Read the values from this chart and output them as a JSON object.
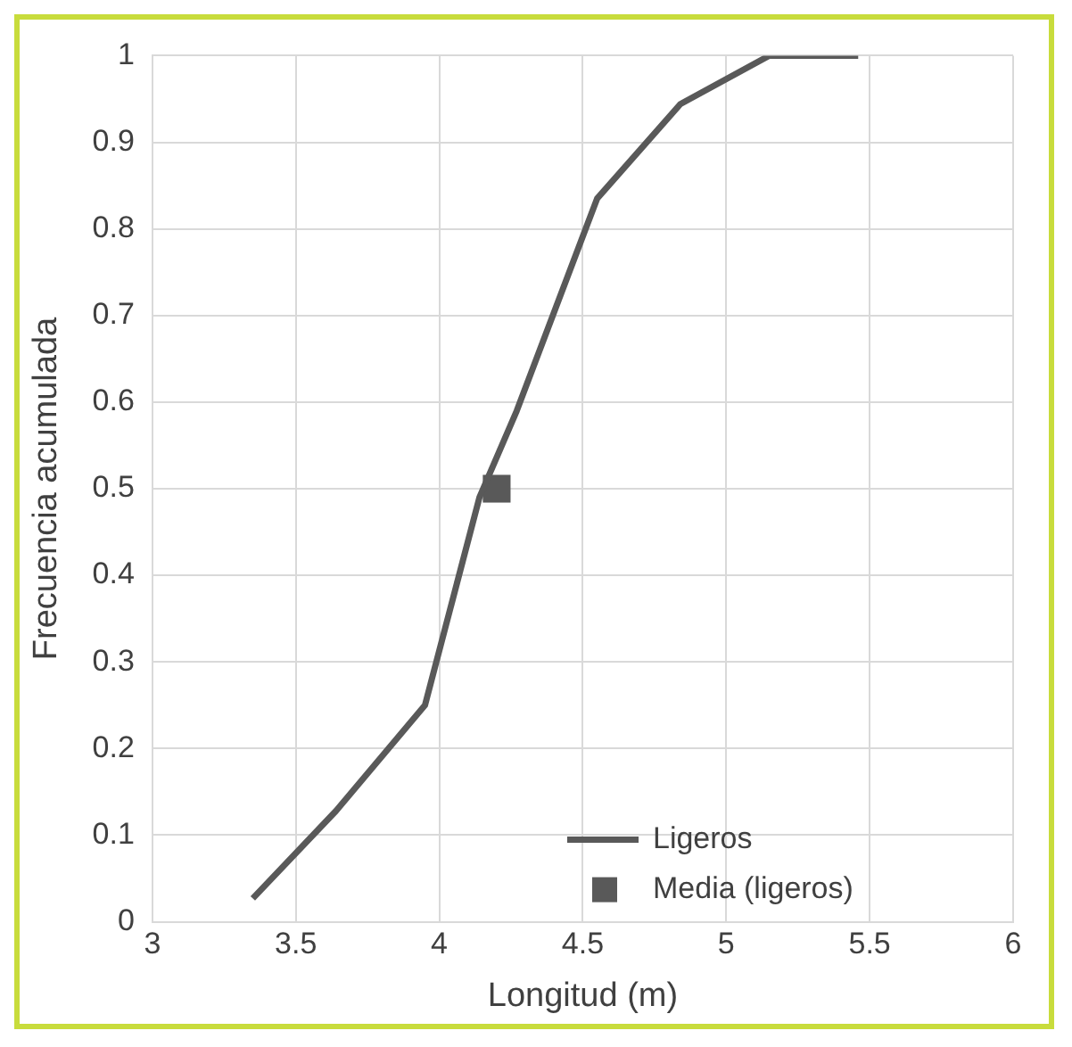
{
  "chart_data": {
    "type": "line",
    "xlabel": "Longitud (m)",
    "ylabel": "Frecuencia acumulada",
    "xlim": [
      3,
      6
    ],
    "xticks": [
      3,
      3.5,
      4,
      4.5,
      5,
      5.5,
      6
    ],
    "ylim": [
      0,
      1
    ],
    "yticks": [
      0,
      0.1,
      0.2,
      0.3,
      0.4,
      0.5,
      0.6,
      0.7,
      0.8,
      0.9,
      1
    ],
    "grid": true,
    "legend": "bottom right",
    "series": [
      {
        "name": "Ligeros",
        "color": "#595959",
        "marker": "none",
        "x": [
          3.35,
          3.64,
          3.95,
          4.14,
          4.27,
          4.55,
          4.84,
          5.15,
          5.46
        ],
        "values": [
          0.027,
          0.128,
          0.25,
          0.49,
          0.59,
          0.835,
          0.944,
          1,
          1
        ]
      },
      {
        "name": "Media (ligeros)",
        "type": "scatter",
        "color": "#595959",
        "marker": "square",
        "x": [
          4.2
        ],
        "values": [
          0.5
        ]
      }
    ]
  }
}
